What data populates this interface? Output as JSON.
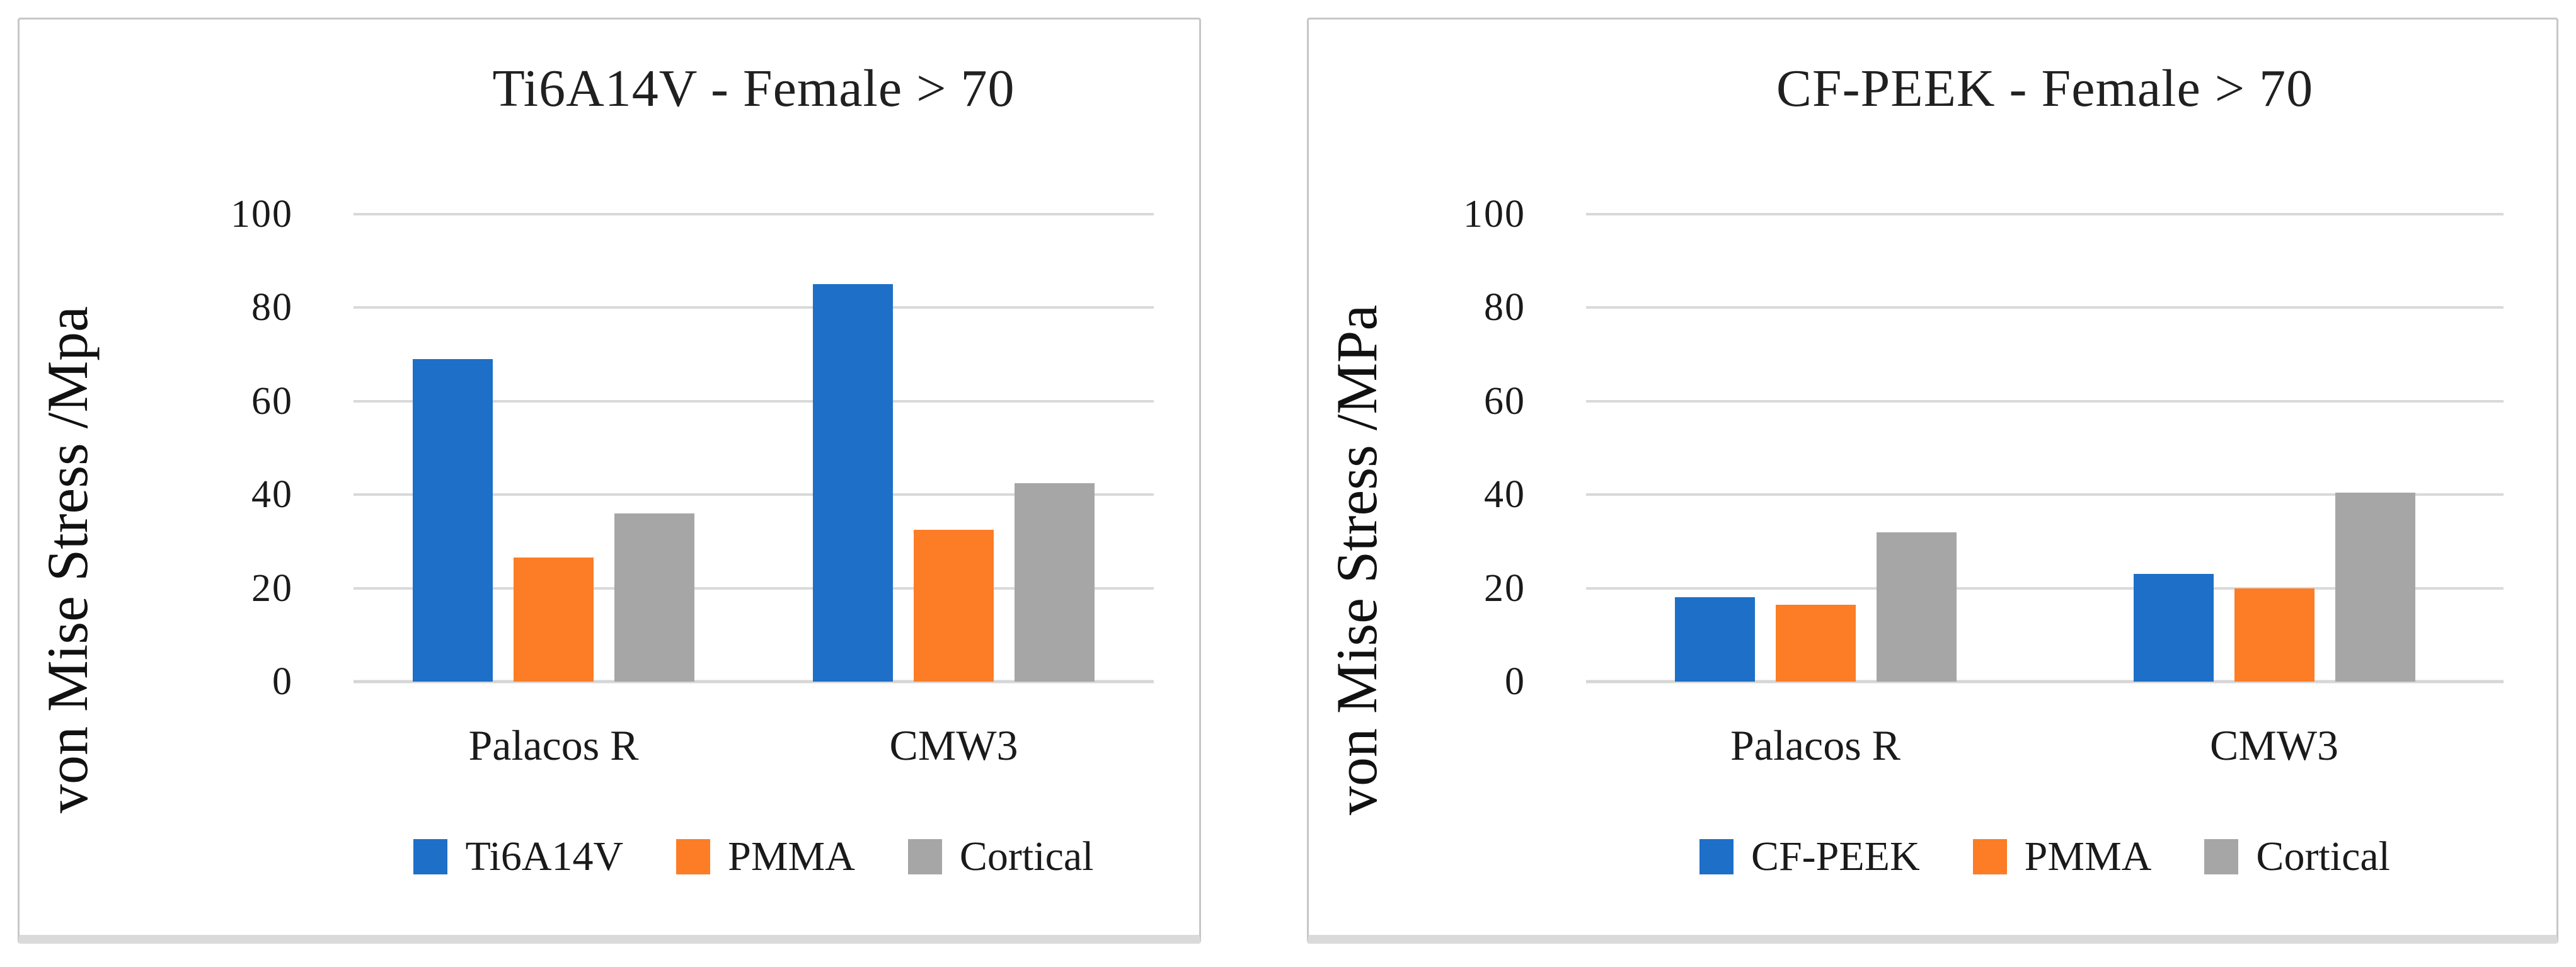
{
  "chart_data": [
    {
      "type": "bar",
      "title": "Ti6A14V - Female > 70",
      "ylabel": "von Mise Stress /Mpa",
      "categories": [
        "Palacos R",
        "CMW3"
      ],
      "series": [
        {
          "name": "Ti6A14V",
          "color": "#1e6fc8",
          "values": [
            69,
            85
          ]
        },
        {
          "name": "PMMA",
          "color": "#fc7d26",
          "values": [
            26.5,
            32.5
          ]
        },
        {
          "name": "Cortical",
          "color": "#a6a6a6",
          "values": [
            36,
            42.5
          ]
        }
      ],
      "ylim": [
        0,
        100
      ],
      "yticks": [
        100,
        80,
        60,
        40,
        20,
        0
      ],
      "grid": true,
      "legend_position": "bottom"
    },
    {
      "type": "bar",
      "title": "CF-PEEK - Female > 70",
      "ylabel": "von Mise Stress /MPa",
      "categories": [
        "Palacos R",
        "CMW3"
      ],
      "series": [
        {
          "name": "CF-PEEK",
          "color": "#1e6fc8",
          "values": [
            18,
            23
          ]
        },
        {
          "name": "PMMA",
          "color": "#fc7d26",
          "values": [
            16.5,
            20
          ]
        },
        {
          "name": "Cortical",
          "color": "#a6a6a6",
          "values": [
            32,
            40.5
          ]
        }
      ],
      "ylim": [
        0,
        100
      ],
      "yticks": [
        100,
        80,
        60,
        40,
        20,
        0
      ],
      "grid": true,
      "legend_position": "bottom"
    }
  ],
  "style": {
    "gridline_color": "#d9d9d9",
    "panel_border_color": "#c7c7c7",
    "panel_shadow_color": "#dadada",
    "text_color": "#1a1a1a"
  }
}
